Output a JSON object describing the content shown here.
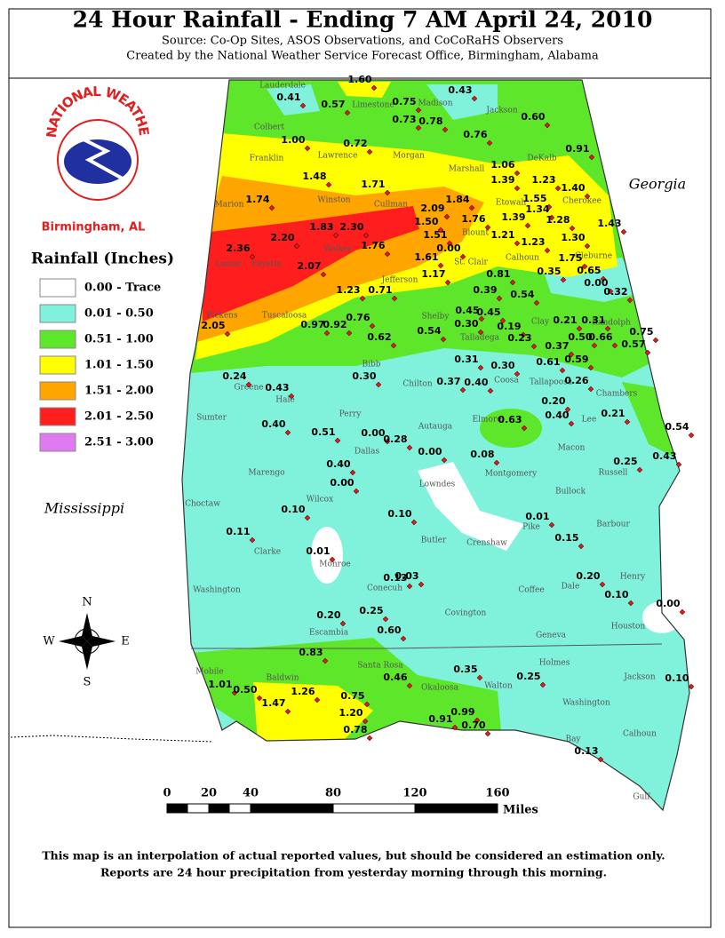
{
  "title": "24 Hour Rainfall - Ending 7 AM April 24, 2010",
  "subtitle": "Source: Co-Op Sites, ASOS Observations, and CoCoRaHS Observers",
  "credit": "Created by the National Weather Service Forecast Office, Birmingham, Alabama",
  "logo": {
    "arc_text": "NATIONAL WEATHER SERVICE",
    "office": "Birmingham, AL"
  },
  "legend": {
    "title": "Rainfall (Inches)",
    "items": [
      {
        "label": "0.00 - Trace",
        "color": "#ffffff"
      },
      {
        "label": "0.01 - 0.50",
        "color": "#80f2dc"
      },
      {
        "label": "0.51 - 1.00",
        "color": "#5ee62a"
      },
      {
        "label": "1.01 - 1.50",
        "color": "#ffff00"
      },
      {
        "label": "1.51 - 2.00",
        "color": "#ffa500"
      },
      {
        "label": "2.01 - 2.50",
        "color": "#ff1e1e"
      },
      {
        "label": "2.51 - 3.00",
        "color": "#e07af0"
      }
    ]
  },
  "states": [
    "Georgia",
    "Mississippi"
  ],
  "counties": [
    "Lauderdale",
    "Limestone",
    "Madison",
    "Jackson",
    "Colbert",
    "Lawrence",
    "Morgan",
    "Franklin",
    "Marshall",
    "DeKalb",
    "Marion",
    "Winston",
    "Cullman",
    "Etowah",
    "Cherokee",
    "Blount",
    "Lamar",
    "Fayette",
    "Walker",
    "Calhoun",
    "Cleburne",
    "St. Clair",
    "Jefferson",
    "Pickens",
    "Tuscaloosa",
    "Shelby",
    "Talladega",
    "Clay",
    "Randolph",
    "Bibb",
    "Coosa",
    "Tallapoosa",
    "Chambers",
    "Sumter",
    "Greene",
    "Hale",
    "Perry",
    "Chilton",
    "Elmore",
    "Lee",
    "Autauga",
    "Dallas",
    "Macon",
    "Russell",
    "Marengo",
    "Montgomery",
    "Lowndes",
    "Bullock",
    "Choctaw",
    "Wilcox",
    "Butler",
    "Crenshaw",
    "Pike",
    "Barbour",
    "Clarke",
    "Monroe",
    "Conecuh",
    "Washington",
    "Coffee",
    "Dale",
    "Henry",
    "Covington",
    "Escambia",
    "Geneva",
    "Houston",
    "Mobile",
    "Baldwin",
    "Santa Rosa",
    "Okaloosa",
    "Walton",
    "Holmes",
    "Jackson",
    "Washington",
    "Calhoun",
    "Bay",
    "Gulf"
  ],
  "stations": [
    "0.41",
    "0.57",
    "1.60",
    "0.75",
    "0.43",
    "0.73",
    "0.78",
    "0.60",
    "0.76",
    "1.00",
    "0.72",
    "0.91",
    "1.06",
    "1.39",
    "1.23",
    "1.48",
    "1.71",
    "1.40",
    "1.55",
    "1.34",
    "1.74",
    "2.09",
    "1.84",
    "1.39",
    "1.28",
    "1.43",
    "1.83",
    "2.30",
    "1.50",
    "1.76",
    "1.21",
    "1.30",
    "2.20",
    "1.51",
    "1.23",
    "2.36",
    "1.76",
    "0.00",
    "1.61",
    "1.75",
    "2.07",
    "1.17",
    "0.81",
    "0.35",
    "0.65",
    "0.00",
    "1.23",
    "0.71",
    "0.39",
    "0.54",
    "0.32",
    "0.45",
    "0.45",
    "2.05",
    "0.97",
    "0.92",
    "0.76",
    "0.30",
    "0.19",
    "0.21",
    "0.31",
    "0.75",
    "0.54",
    "0.62",
    "0.23",
    "0.37",
    "0.50",
    "0.66",
    "0.57",
    "0.61",
    "0.59",
    "0.31",
    "0.30",
    "0.30",
    "0.37",
    "0.40",
    "0.26",
    "0.24",
    "0.43",
    "0.20",
    "0.40",
    "0.21",
    "0.63",
    "0.54",
    "0.40",
    "0.51",
    "0.00",
    "0.28",
    "0.00",
    "0.08",
    "0.43",
    "0.25",
    "0.40",
    "0.00",
    "0.10",
    "0.10",
    "0.01",
    "0.11",
    "0.15",
    "0.01",
    "0.13",
    "0.03",
    "0.20",
    "0.10",
    "0.00",
    "0.20",
    "0.25",
    "0.60",
    "0.83",
    "0.35",
    "0.46",
    "0.25",
    "0.10",
    "1.01",
    "0.50",
    "1.26",
    "0.75",
    "1.47",
    "1.20",
    "0.78",
    "0.91",
    "0.99",
    "0.70",
    "0.13"
  ],
  "compass": [
    "N",
    "E",
    "S",
    "W"
  ],
  "scale": {
    "ticks": [
      "0",
      "20",
      "40",
      "80",
      "120",
      "160"
    ],
    "unit": "Miles"
  },
  "footer": [
    "This map is an interpolation of actual reported values, but should be considered an estimation only.",
    "Reports are 24 hour precipitation from yesterday morning through this morning."
  ]
}
